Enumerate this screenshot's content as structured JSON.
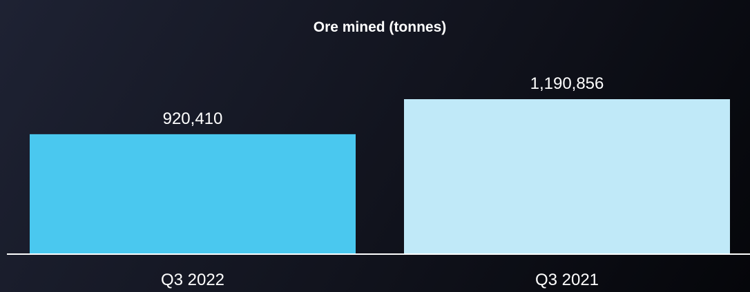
{
  "chart_data": {
    "type": "bar",
    "title": "Ore mined (tonnes)",
    "categories": [
      "Q3 2022",
      "Q3 2021"
    ],
    "values": [
      920410,
      1190856
    ],
    "data_labels": [
      "920,410",
      "1,190,856"
    ],
    "colors": [
      "#4ac8ef",
      "#c0e9f8"
    ],
    "xlabel": "",
    "ylabel": "",
    "grid": false,
    "legend": "none"
  }
}
